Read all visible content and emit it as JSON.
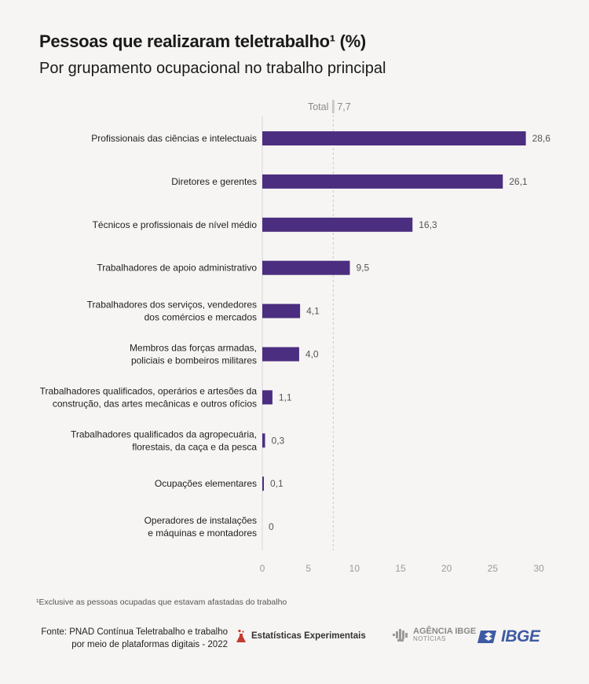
{
  "title": "Pessoas que realizaram teletrabalho¹ (%)",
  "subtitle": "Por grupamento ocupacional no trabalho principal",
  "colors": {
    "bar": "#4b2e7f",
    "total_line": "#c9c9c9",
    "background": "#f6f5f3",
    "ibge_blue": "#3e5aa3",
    "estat_red": "#c23b30"
  },
  "chart_data": {
    "type": "bar",
    "orientation": "horizontal",
    "title": "Pessoas que realizaram teletrabalho¹ (%)",
    "subtitle": "Por grupamento ocupacional no trabalho principal",
    "categories": [
      [
        "Profissionais das ciências e intelectuais"
      ],
      [
        "Diretores e gerentes"
      ],
      [
        "Técnicos e profissionais de nível médio"
      ],
      [
        "Trabalhadores de apoio administrativo"
      ],
      [
        "Trabalhadores dos serviços, vendedores",
        "dos comércios e mercados"
      ],
      [
        "Membros das forças armadas,",
        "policiais e bombeiros militares"
      ],
      [
        "Trabalhadores qualificados, operários e artesões da",
        "construção, das artes mecânicas e outros ofícios"
      ],
      [
        "Trabalhadores qualificados da agropecuária,",
        "florestais, da caça e da pesca"
      ],
      [
        "Ocupações elementares"
      ],
      [
        "Operadores de instalações",
        "e máquinas e montadores"
      ]
    ],
    "values": [
      28.6,
      26.1,
      16.3,
      9.5,
      4.1,
      4.0,
      1.1,
      0.3,
      0.1,
      0
    ],
    "value_labels": [
      "28,6",
      "26,1",
      "16,3",
      "9,5",
      "4,1",
      "4,0",
      "1,1",
      "0,3",
      "0,1",
      "0"
    ],
    "reference_line": {
      "label": "Total",
      "value": 7.7,
      "value_label": "7,7"
    },
    "xlim": [
      0,
      30
    ],
    "xticks": [
      0,
      5,
      10,
      15,
      20,
      25,
      30
    ],
    "grid": false,
    "legend": "none"
  },
  "footnote": "¹Exclusive as pessoas ocupadas que estavam afastadas do trabalho",
  "source": {
    "line1": "Fonte: PNAD Contínua Teletrabalho e trabalho",
    "line2": "por meio de plataformas digitais - 2022"
  },
  "logos": {
    "estatisticas": "Estatísticas Experimentais",
    "agencia_line1": "AGÊNCIA IBGE",
    "agencia_line2": "NOTÍCIAS",
    "ibge": "IBGE"
  }
}
